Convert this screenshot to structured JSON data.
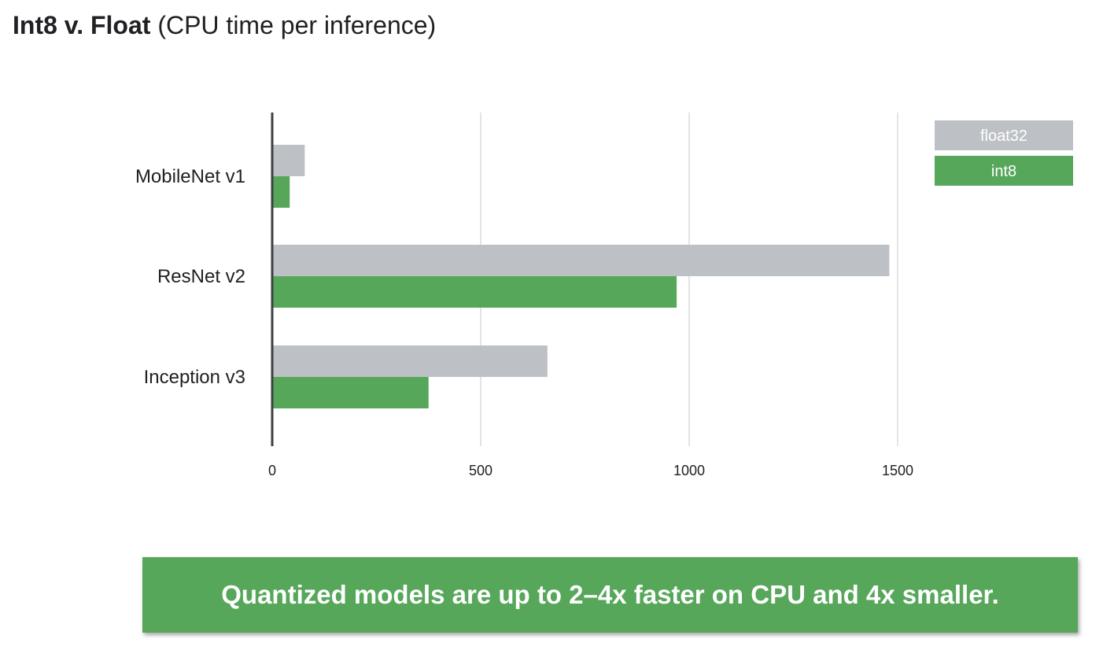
{
  "title": {
    "bold": "Int8 v. Float",
    "normal": "(CPU time per inference)"
  },
  "colors": {
    "float32": "#bdc1c6",
    "int8": "#57a75a",
    "axis": "#3c4043",
    "grid": "#dadce0",
    "callout": "#57a75a"
  },
  "chart_data": {
    "type": "bar",
    "orientation": "horizontal",
    "categories": [
      "MobileNet v1",
      "ResNet v2",
      "Inception v3"
    ],
    "series": [
      {
        "name": "float32",
        "values": [
          78,
          1480,
          660
        ]
      },
      {
        "name": "int8",
        "values": [
          42,
          970,
          375
        ]
      }
    ],
    "xticks": [
      0,
      500,
      1000,
      1500
    ],
    "xlim": [
      0,
      1500
    ],
    "grid": true,
    "legend": "top-right"
  },
  "callout": {
    "text": "Quantized models are up to 2–4x faster on CPU and 4x smaller."
  }
}
